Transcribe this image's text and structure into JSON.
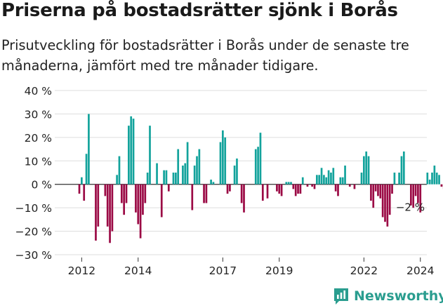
{
  "title": "Priserna på bostadsrätter sjönk i Borås",
  "subtitle": "Prisutveckling för bostadsrätter i Borås under de senaste tre månaderna, jämfört med tre månader tidigare.",
  "logo_text": "Newsworthy",
  "chart_data": {
    "type": "bar",
    "ylim": [
      -30,
      40
    ],
    "yticks": [
      40,
      30,
      20,
      10,
      0,
      -10,
      -20,
      -30
    ],
    "ytick_labels": [
      "40 %",
      "30 %",
      "20 %",
      "10 %",
      "0 %",
      "−10 %",
      "−20 %",
      "−30 %"
    ],
    "xtick_labels": [
      "2012",
      "2014",
      "2017",
      "2019",
      "2022",
      "2024"
    ],
    "xtick_index": [
      1,
      25,
      61,
      85,
      121,
      145
    ],
    "grid": true,
    "positive_color": "#13a39c",
    "negative_color": "#9b0a45",
    "last_value_label": "−2 %",
    "values": [
      -4,
      3,
      -7,
      13,
      30,
      0,
      0,
      -24,
      -18,
      0,
      0,
      -5,
      -18,
      -25,
      -20,
      0,
      4,
      12,
      -8,
      -13,
      -8,
      25,
      29,
      28,
      -12,
      -17,
      -23,
      -13,
      -8,
      5,
      25,
      0,
      0,
      9,
      0,
      -14,
      6,
      6,
      -3,
      0,
      5,
      5,
      15,
      0,
      8,
      9,
      18,
      0,
      -11,
      8,
      12,
      15,
      0,
      -8,
      -8,
      0,
      2,
      1,
      0,
      0,
      18,
      23,
      20,
      -4,
      -3,
      0,
      8,
      11,
      0,
      -8,
      -12,
      0,
      0,
      0,
      0,
      15,
      16,
      22,
      -7,
      0,
      -6,
      0,
      0,
      0,
      -3,
      -4,
      -5,
      0,
      1,
      1,
      1,
      -2,
      -5,
      -4,
      -4,
      3,
      0,
      -1,
      0,
      -1,
      -2,
      4,
      4,
      7,
      4,
      3,
      6,
      5,
      7,
      -3,
      -5,
      3,
      3,
      8,
      0,
      -1,
      0,
      -2,
      0,
      0,
      5,
      12,
      14,
      12,
      -7,
      -10,
      -3,
      -5,
      -6,
      -14,
      -16,
      -18,
      -13,
      -4,
      5,
      0,
      5,
      12,
      14,
      0,
      0,
      -9,
      -10,
      -5,
      -8,
      -12,
      0,
      0,
      5,
      2,
      5,
      8,
      5,
      4,
      -1,
      -2
    ]
  }
}
